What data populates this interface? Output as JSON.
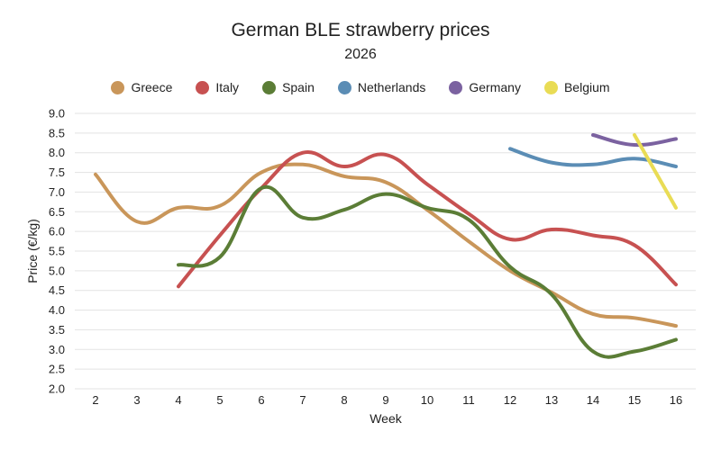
{
  "chart_data": {
    "type": "line",
    "title": "German BLE strawberry prices",
    "subtitle": "2026",
    "xlabel": "Week",
    "ylabel": "Price (€/kg)",
    "xlim": [
      2,
      16
    ],
    "ylim": [
      2.0,
      9.0
    ],
    "x_ticks": [
      "2",
      "3",
      "4",
      "5",
      "6",
      "7",
      "8",
      "9",
      "10",
      "11",
      "12",
      "13",
      "14",
      "15",
      "16"
    ],
    "y_ticks": [
      "2.0",
      "2.5",
      "3.0",
      "3.5",
      "4.0",
      "4.5",
      "5.0",
      "5.5",
      "6.0",
      "6.5",
      "7.0",
      "7.5",
      "8.0",
      "8.5",
      "9.0"
    ],
    "grid": "horizontal",
    "legend_position": "top",
    "series": [
      {
        "name": "Greece",
        "color": "#c9965a",
        "points": [
          [
            2,
            7.45
          ],
          [
            3,
            6.25
          ],
          [
            4,
            6.6
          ],
          [
            5,
            6.65
          ],
          [
            6,
            7.5
          ],
          [
            7,
            7.7
          ],
          [
            8,
            7.4
          ],
          [
            9,
            7.25
          ],
          [
            10,
            6.55
          ],
          [
            11,
            5.75
          ],
          [
            12,
            5.0
          ],
          [
            13,
            4.45
          ],
          [
            14,
            3.9
          ],
          [
            15,
            3.8
          ],
          [
            16,
            3.6
          ]
        ]
      },
      {
        "name": "Italy",
        "color": "#c75151",
        "points": [
          [
            4,
            4.6
          ],
          [
            5,
            5.9
          ],
          [
            6,
            7.1
          ],
          [
            7,
            8.0
          ],
          [
            8,
            7.65
          ],
          [
            9,
            7.95
          ],
          [
            10,
            7.2
          ],
          [
            11,
            6.45
          ],
          [
            12,
            5.8
          ],
          [
            13,
            6.05
          ],
          [
            14,
            5.9
          ],
          [
            15,
            5.65
          ],
          [
            16,
            4.65
          ]
        ]
      },
      {
        "name": "Spain",
        "color": "#5b7d36",
        "points": [
          [
            4,
            5.15
          ],
          [
            5,
            5.35
          ],
          [
            6,
            7.1
          ],
          [
            7,
            6.35
          ],
          [
            8,
            6.55
          ],
          [
            9,
            6.95
          ],
          [
            10,
            6.6
          ],
          [
            11,
            6.3
          ],
          [
            12,
            5.1
          ],
          [
            13,
            4.4
          ],
          [
            14,
            2.95
          ],
          [
            15,
            2.95
          ],
          [
            16,
            3.25
          ]
        ]
      },
      {
        "name": "Netherlands",
        "color": "#5b8db5",
        "points": [
          [
            12,
            8.1
          ],
          [
            13,
            7.75
          ],
          [
            14,
            7.7
          ],
          [
            15,
            7.85
          ],
          [
            16,
            7.65
          ]
        ]
      },
      {
        "name": "Germany",
        "color": "#7b62a0",
        "points": [
          [
            14,
            8.45
          ],
          [
            15,
            8.2
          ],
          [
            16,
            8.35
          ]
        ]
      },
      {
        "name": "Belgium",
        "color": "#e9dc55",
        "points": [
          [
            15,
            8.45
          ],
          [
            16,
            6.6
          ]
        ]
      }
    ]
  }
}
